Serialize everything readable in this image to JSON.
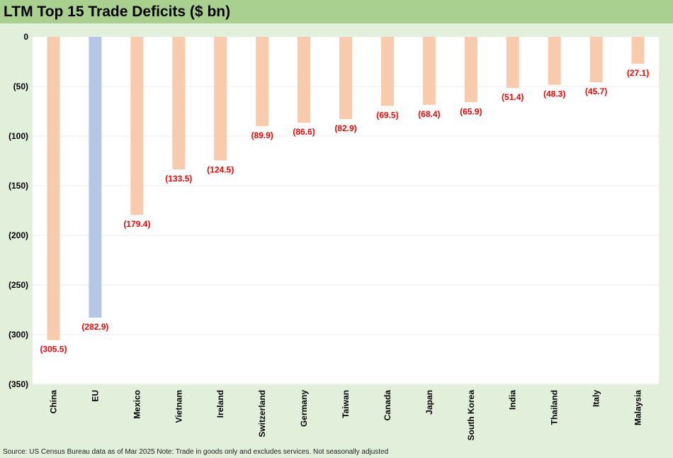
{
  "title": "LTM Top 15 Trade Deficits ($ bn)",
  "source_note": "Source: US Census Bureau data as of Mar 2025 Note: Trade in goods only and excludes services. Not seasonally adjusted",
  "colors": {
    "title_bar": "#a9d08e",
    "background": "#e2efda",
    "bar_default": "#f8cbad",
    "bar_highlight": "#b4c7e7",
    "data_label": "#ff0000"
  },
  "chart_data": {
    "type": "bar",
    "title": "LTM Top 15 Trade Deficits ($ bn)",
    "xlabel": "",
    "ylabel": "",
    "ylim": [
      -350,
      0
    ],
    "yticks": [
      0,
      -50,
      -100,
      -150,
      -200,
      -250,
      -300,
      -350
    ],
    "ytick_labels": [
      "0",
      "(50)",
      "(100)",
      "(150)",
      "(200)",
      "(250)",
      "(300)",
      "(350)"
    ],
    "grid": true,
    "categories": [
      "China",
      "EU",
      "Mexico",
      "Vietnam",
      "Ireland",
      "Switzerland",
      "Germany",
      "Taiwan",
      "Canada",
      "Japan",
      "South Korea",
      "India",
      "Thailand",
      "Italy",
      "Malaysia"
    ],
    "values": [
      -305.5,
      -282.9,
      -179.4,
      -133.5,
      -124.5,
      -89.9,
      -86.6,
      -82.9,
      -69.5,
      -68.4,
      -65.9,
      -51.4,
      -48.3,
      -45.7,
      -27.1
    ],
    "data_labels": [
      "(305.5)",
      "(282.9)",
      "(179.4)",
      "(133.5)",
      "(124.5)",
      "(89.9)",
      "(86.6)",
      "(82.9)",
      "(69.5)",
      "(68.4)",
      "(65.9)",
      "(51.4)",
      "(48.3)",
      "(45.7)",
      "(27.1)"
    ],
    "highlight_category": "EU"
  }
}
